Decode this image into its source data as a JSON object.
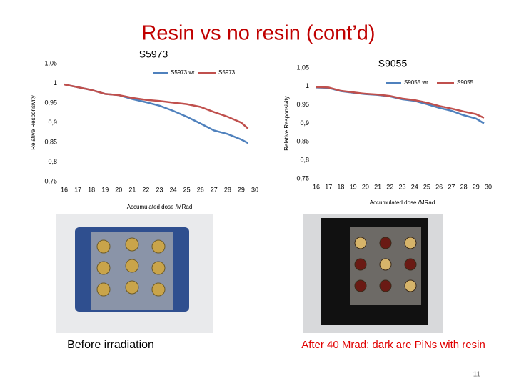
{
  "title": "Resin vs no resin (cont’d)",
  "chart_data": [
    {
      "type": "line",
      "title": "S5973",
      "y_label": "Relative Responsivity",
      "x_label": "Accumulated dose /MRad",
      "x": [
        16,
        17,
        18,
        19,
        20,
        21,
        22,
        23,
        24,
        25,
        26,
        27,
        28,
        29,
        29.5
      ],
      "series": [
        {
          "name": "S5973 wr",
          "color": "#4f81bd",
          "values": [
            0.997,
            0.99,
            0.983,
            0.973,
            0.97,
            0.96,
            0.952,
            0.943,
            0.93,
            0.915,
            0.898,
            0.88,
            0.871,
            0.857,
            0.848
          ]
        },
        {
          "name": "S5973",
          "color": "#c0504d",
          "values": [
            0.997,
            0.99,
            0.983,
            0.973,
            0.97,
            0.963,
            0.958,
            0.955,
            0.951,
            0.947,
            0.94,
            0.927,
            0.915,
            0.9,
            0.885
          ]
        }
      ],
      "xlim": [
        16,
        30
      ],
      "xticks": [
        16,
        17,
        18,
        19,
        20,
        21,
        22,
        23,
        24,
        25,
        26,
        27,
        28,
        29,
        30
      ],
      "ylim": [
        0.75,
        1.05
      ],
      "yticks": [
        {
          "value": 0.75,
          "label": "0,75"
        },
        {
          "value": 0.8,
          "label": "0,8"
        },
        {
          "value": 0.85,
          "label": "0,85"
        },
        {
          "value": 0.9,
          "label": "0,9"
        },
        {
          "value": 0.95,
          "label": "0,95"
        },
        {
          "value": 1,
          "label": "1"
        },
        {
          "value": 1.05,
          "label": "1,05"
        }
      ],
      "grid": false
    },
    {
      "type": "line",
      "title": "S9055",
      "y_label": "Relative Responsivity",
      "x_label": "Accumulated dose /MRad",
      "x": [
        16,
        17,
        18,
        19,
        20,
        21,
        22,
        23,
        24,
        25,
        26,
        27,
        28,
        29,
        29.65
      ],
      "series": [
        {
          "name": "S9055 wr",
          "color": "#4f81bd",
          "values": [
            0.997,
            0.996,
            0.987,
            0.983,
            0.979,
            0.977,
            0.973,
            0.965,
            0.961,
            0.952,
            0.942,
            0.934,
            0.922,
            0.913,
            0.9
          ]
        },
        {
          "name": "S9055",
          "color": "#c0504d",
          "values": [
            0.998,
            0.997,
            0.988,
            0.984,
            0.98,
            0.978,
            0.974,
            0.967,
            0.963,
            0.956,
            0.947,
            0.94,
            0.932,
            0.925,
            0.915
          ]
        }
      ],
      "xlim": [
        16,
        30
      ],
      "xticks": [
        16,
        17,
        18,
        19,
        20,
        21,
        22,
        23,
        24,
        25,
        26,
        27,
        28,
        29,
        30
      ],
      "ylim": [
        0.75,
        1.05
      ],
      "yticks": [
        {
          "value": 0.75,
          "label": "0,75"
        },
        {
          "value": 0.8,
          "label": "0,8"
        },
        {
          "value": 0.85,
          "label": "0,85"
        },
        {
          "value": 0.9,
          "label": "0,9"
        },
        {
          "value": 0.95,
          "label": "0,95"
        },
        {
          "value": 1,
          "label": "1"
        },
        {
          "value": 1.05,
          "label": "1,05"
        }
      ],
      "grid": false
    }
  ],
  "captions": [
    "Before irradiation",
    "After 40 Mrad: dark are PiNs with resin"
  ],
  "page_number": "11"
}
